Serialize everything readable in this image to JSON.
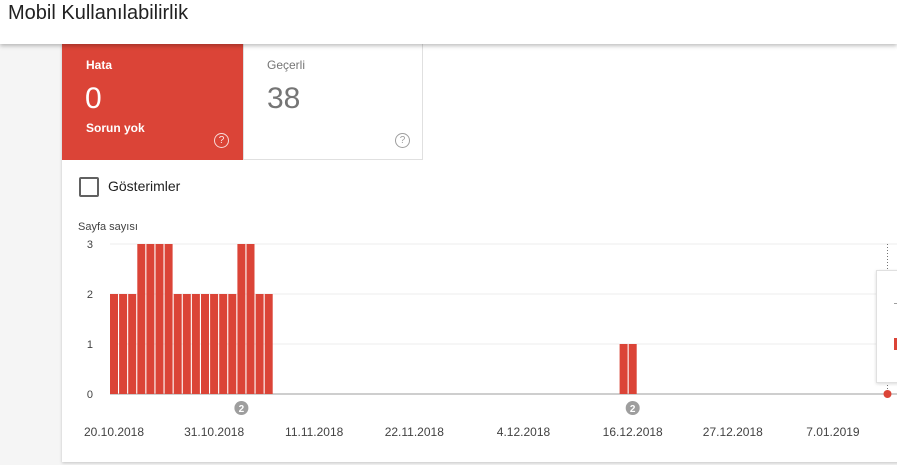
{
  "header": {
    "title": "Mobil Kullanılabilirlik"
  },
  "tiles": {
    "error": {
      "label": "Hata",
      "value": "0",
      "sub": "Sorun yok",
      "help": "?"
    },
    "valid": {
      "label": "Geçerli",
      "value": "38",
      "help": "?"
    }
  },
  "impressions": {
    "label": "Gösterimler",
    "checked": false
  },
  "colors": {
    "error": "#db4437",
    "annotation": "#9e9e9e"
  },
  "chart_data": {
    "type": "bar",
    "ylabel": "Sayfa sayısı",
    "ylim": [
      0,
      3
    ],
    "yticks": [
      "0",
      "1",
      "2",
      "3"
    ],
    "grid": true,
    "x_start": "2018-10-20",
    "xtick_labels": [
      "20.10.2018",
      "31.10.2018",
      "11.11.2018",
      "22.11.2018",
      "4.12.2018",
      "16.12.2018",
      "27.12.2018",
      "7.01.2019"
    ],
    "values": [
      2,
      2,
      2,
      3,
      3,
      3,
      3,
      2,
      2,
      2,
      2,
      2,
      2,
      2,
      3,
      3,
      2,
      2,
      0,
      0,
      0,
      0,
      0,
      0,
      0,
      0,
      0,
      0,
      0,
      0,
      0,
      0,
      0,
      0,
      0,
      0,
      0,
      0,
      0,
      0,
      0,
      0,
      0,
      0,
      0,
      0,
      0,
      0,
      0,
      0,
      0,
      0,
      0,
      0,
      0,
      0,
      1,
      1,
      0,
      0,
      0,
      0,
      0,
      0,
      0,
      0,
      0,
      0,
      0,
      0,
      0,
      0,
      0,
      0,
      0,
      0,
      0,
      0,
      0,
      0,
      0,
      0,
      0,
      0,
      0
    ],
    "annotations": [
      {
        "date": "2018-11-03",
        "label": "2"
      },
      {
        "date": "2018-12-16",
        "label": "2"
      }
    ],
    "marker_date": "2019-01-13"
  }
}
